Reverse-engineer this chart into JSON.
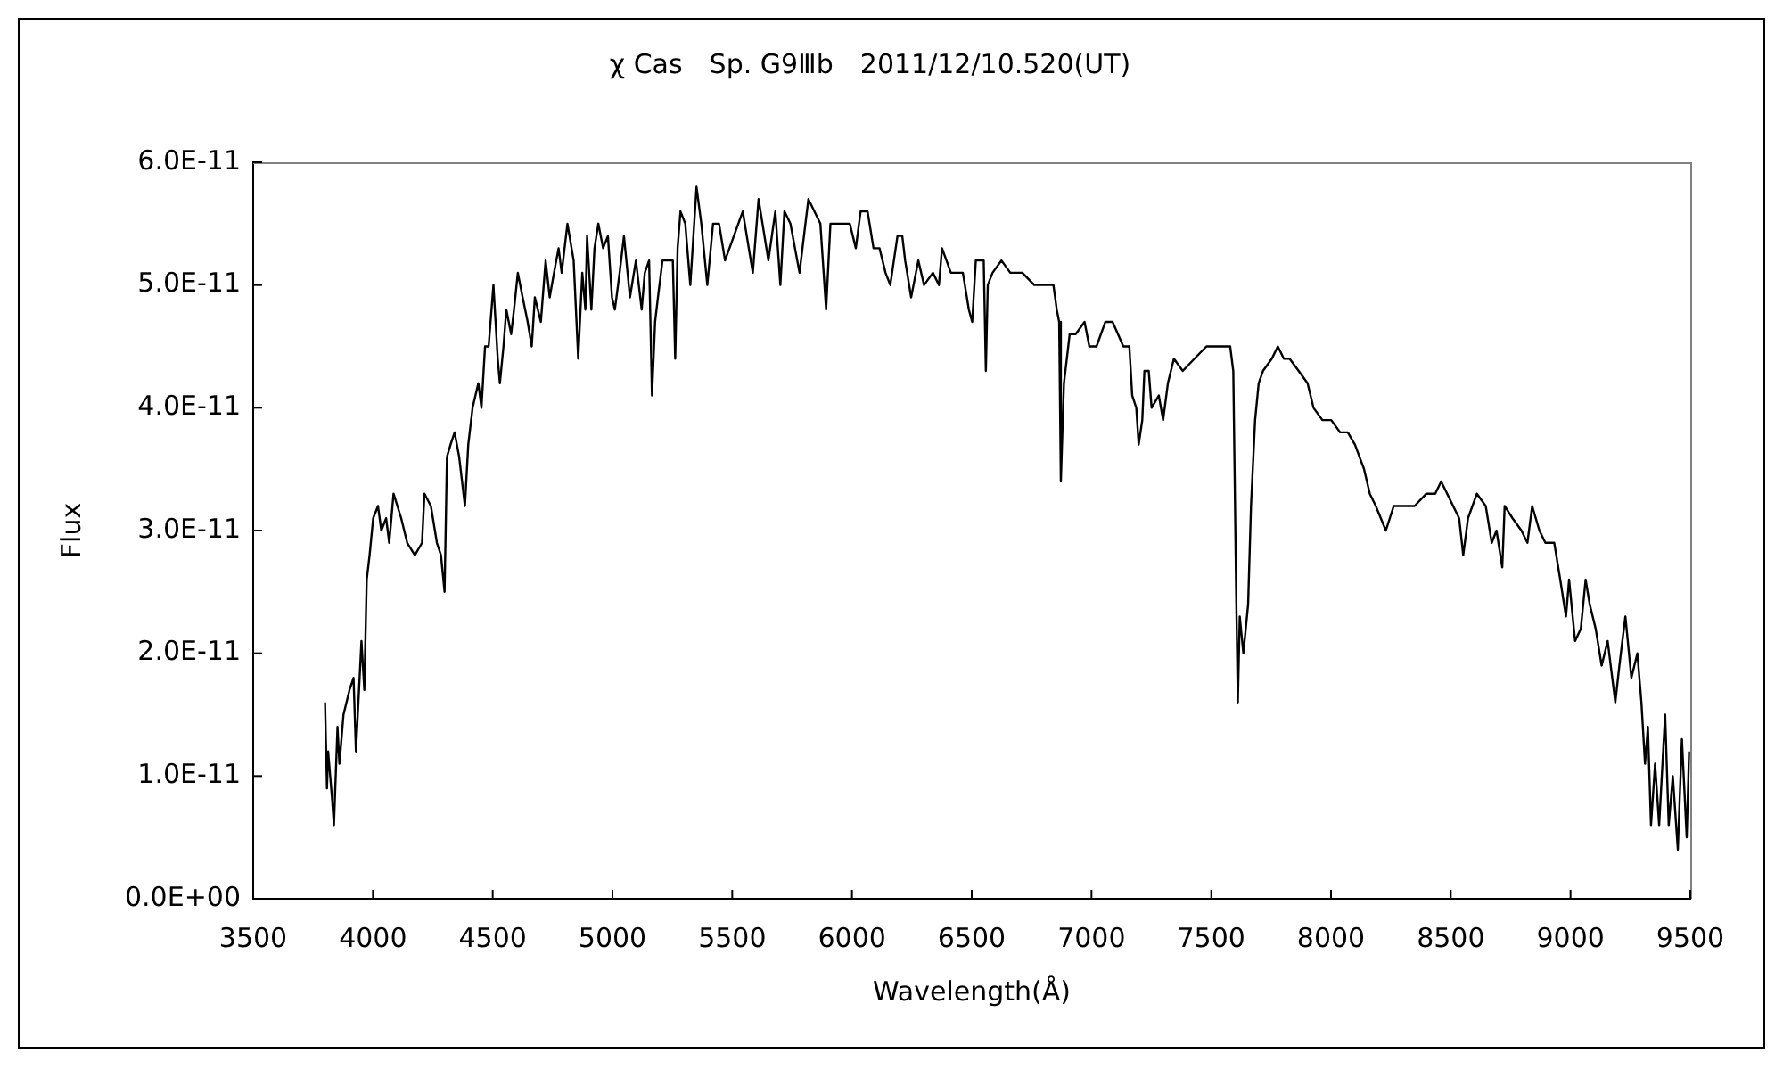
{
  "chart_data": {
    "type": "line",
    "title": "χ Cas　Sp. G9Ⅲb　2011/12/10.520(UT)",
    "xlabel": "Wavelength(Å)",
    "ylabel": "Flux",
    "x": [
      3800,
      3808,
      3813,
      3830,
      3837,
      3852,
      3860,
      3877,
      3902,
      3919,
      3929,
      3952,
      3964,
      3974,
      3986,
      4001,
      4021,
      4035,
      4055,
      4068,
      4086,
      4118,
      4143,
      4175,
      4205,
      4215,
      4242,
      4267,
      4284,
      4299,
      4309,
      4324,
      4341,
      4360,
      4384,
      4398,
      4416,
      4440,
      4453,
      4468,
      4483,
      4503,
      4521,
      4530,
      4545,
      4557,
      4577,
      4589,
      4605,
      4625,
      4646,
      4663,
      4676,
      4701,
      4721,
      4738,
      4756,
      4775,
      4788,
      4812,
      4838,
      4857,
      4874,
      4887,
      4894,
      4912,
      4925,
      4941,
      4961,
      4981,
      4998,
      5010,
      5030,
      5048,
      5073,
      5098,
      5122,
      5135,
      5153,
      5165,
      5178,
      5190,
      5209,
      5234,
      5252,
      5262,
      5272,
      5284,
      5304,
      5325,
      5351,
      5371,
      5396,
      5420,
      5445,
      5470,
      5544,
      5586,
      5610,
      5651,
      5680,
      5701,
      5718,
      5743,
      5781,
      5818,
      5843,
      5868,
      5892,
      5910,
      5954,
      5991,
      6016,
      6036,
      6065,
      6090,
      6115,
      6140,
      6160,
      6190,
      6210,
      6222,
      6247,
      6277,
      6301,
      6338,
      6363,
      6376,
      6413,
      6438,
      6463,
      6488,
      6502,
      6517,
      6550,
      6559,
      6567,
      6587,
      6624,
      6661,
      6711,
      6761,
      6811,
      6841,
      6855,
      6865,
      6872,
      6885,
      6897,
      6909,
      6934,
      6971,
      6991,
      7021,
      7058,
      7088,
      7133,
      7158,
      7170,
      7187,
      7197,
      7212,
      7221,
      7239,
      7251,
      7281,
      7299,
      7319,
      7344,
      7381,
      7430,
      7480,
      7505,
      7554,
      7579,
      7592,
      7604,
      7611,
      7619,
      7634,
      7654,
      7666,
      7683,
      7698,
      7716,
      7753,
      7778,
      7803,
      7827,
      7865,
      7902,
      7927,
      7964,
      8001,
      8038,
      8070,
      8100,
      8138,
      8162,
      8187,
      8229,
      8262,
      8299,
      8349,
      8398,
      8435,
      8460,
      8485,
      8510,
      8535,
      8552,
      8572,
      8609,
      8646,
      8671,
      8691,
      8715,
      8725,
      8758,
      8795,
      8820,
      8840,
      8870,
      8895,
      8932,
      8957,
      8981,
      8994,
      9019,
      9043,
      9063,
      9080,
      9105,
      9130,
      9155,
      9187,
      9204,
      9229,
      9254,
      9279,
      9296,
      9311,
      9323,
      9336,
      9353,
      9370,
      9395,
      9410,
      9427,
      9448,
      9465,
      9485,
      9495
    ],
    "series": [
      {
        "color": "#000000",
        "values": [
          1.6e-11,
          9e-12,
          1.2e-11,
          8e-12,
          6e-12,
          1.4e-11,
          1.1e-11,
          1.5e-11,
          1.7e-11,
          1.8e-11,
          1.2e-11,
          2.1e-11,
          1.7e-11,
          2.6e-11,
          2.8e-11,
          3.1e-11,
          3.2e-11,
          3e-11,
          3.1e-11,
          2.9e-11,
          3.3e-11,
          3.1e-11,
          2.9e-11,
          2.8e-11,
          2.9e-11,
          3.3e-11,
          3.2e-11,
          2.9e-11,
          2.8e-11,
          2.5e-11,
          3.6e-11,
          3.7e-11,
          3.8e-11,
          3.6e-11,
          3.2e-11,
          3.7e-11,
          4e-11,
          4.2e-11,
          4e-11,
          4.5e-11,
          4.5e-11,
          5e-11,
          4.4e-11,
          4.2e-11,
          4.5e-11,
          4.8e-11,
          4.6e-11,
          4.8e-11,
          5.1e-11,
          4.9e-11,
          4.7e-11,
          4.5e-11,
          4.9e-11,
          4.7e-11,
          5.2e-11,
          4.9e-11,
          5.1e-11,
          5.3e-11,
          5.1e-11,
          5.5e-11,
          5.2e-11,
          4.4e-11,
          5.1e-11,
          4.8e-11,
          5.4e-11,
          4.8e-11,
          5.3e-11,
          5.5e-11,
          5.3e-11,
          5.4e-11,
          4.9e-11,
          4.8e-11,
          5.1e-11,
          5.4e-11,
          4.9e-11,
          5.2e-11,
          4.8e-11,
          5.1e-11,
          5.2e-11,
          4.1e-11,
          4.7e-11,
          4.9e-11,
          5.2e-11,
          5.2e-11,
          5.2e-11,
          4.4e-11,
          5.3e-11,
          5.6e-11,
          5.5e-11,
          5e-11,
          5.8e-11,
          5.5e-11,
          5e-11,
          5.5e-11,
          5.5e-11,
          5.2e-11,
          5.6e-11,
          5.1e-11,
          5.7e-11,
          5.2e-11,
          5.6e-11,
          5e-11,
          5.6e-11,
          5.5e-11,
          5.1e-11,
          5.7e-11,
          5.6e-11,
          5.5e-11,
          4.8e-11,
          5.5e-11,
          5.5e-11,
          5.5e-11,
          5.3e-11,
          5.6e-11,
          5.6e-11,
          5.3e-11,
          5.3e-11,
          5.1e-11,
          5e-11,
          5.4e-11,
          5.4e-11,
          5.2e-11,
          4.9e-11,
          5.2e-11,
          5e-11,
          5.1e-11,
          5e-11,
          5.3e-11,
          5.1e-11,
          5.1e-11,
          5.1e-11,
          4.8e-11,
          4.7e-11,
          5.2e-11,
          5.2e-11,
          4.3e-11,
          5e-11,
          5.1e-11,
          5.2e-11,
          5.1e-11,
          5.1e-11,
          5e-11,
          5e-11,
          5e-11,
          4.8e-11,
          4.7e-11,
          3.4e-11,
          4.2e-11,
          4.4e-11,
          4.6e-11,
          4.6e-11,
          4.7e-11,
          4.5e-11,
          4.5e-11,
          4.7e-11,
          4.7e-11,
          4.5e-11,
          4.5e-11,
          4.1e-11,
          4e-11,
          3.7e-11,
          3.9e-11,
          4.3e-11,
          4.3e-11,
          4e-11,
          4.1e-11,
          3.9e-11,
          4.2e-11,
          4.4e-11,
          4.3e-11,
          4.4e-11,
          4.5e-11,
          4.5e-11,
          4.5e-11,
          4.5e-11,
          4.3e-11,
          2.5e-11,
          1.6e-11,
          2.3e-11,
          2e-11,
          2.4e-11,
          3.2e-11,
          3.9e-11,
          4.2e-11,
          4.3e-11,
          4.4e-11,
          4.5e-11,
          4.4e-11,
          4.4e-11,
          4.3e-11,
          4.2e-11,
          4e-11,
          3.9e-11,
          3.9e-11,
          3.8e-11,
          3.8e-11,
          3.7e-11,
          3.5e-11,
          3.3e-11,
          3.2e-11,
          3e-11,
          3.2e-11,
          3.2e-11,
          3.2e-11,
          3.3e-11,
          3.3e-11,
          3.4e-11,
          3.3e-11,
          3.2e-11,
          3.1e-11,
          2.8e-11,
          3.1e-11,
          3.3e-11,
          3.2e-11,
          2.9e-11,
          3e-11,
          2.7e-11,
          3.2e-11,
          3.1e-11,
          3e-11,
          2.9e-11,
          3.2e-11,
          3e-11,
          2.9e-11,
          2.9e-11,
          2.6e-11,
          2.3e-11,
          2.6e-11,
          2.1e-11,
          2.2e-11,
          2.6e-11,
          2.4e-11,
          2.2e-11,
          1.9e-11,
          2.1e-11,
          1.6e-11,
          1.9e-11,
          2.3e-11,
          1.8e-11,
          2e-11,
          1.6e-11,
          1.1e-11,
          1.4e-11,
          6e-12,
          1.1e-11,
          6e-12,
          1.5e-11,
          6e-12,
          1e-11,
          4e-12,
          1.3e-11,
          5e-12,
          1.2e-11
        ]
      }
    ],
    "xlim": [
      3500,
      9500
    ],
    "xticks": [
      3500,
      4000,
      4500,
      5000,
      5500,
      6000,
      6500,
      7000,
      7500,
      8000,
      8500,
      9000,
      9500
    ],
    "ylim": [
      0,
      6e-11
    ],
    "yticks": [
      {
        "value": 0,
        "label": "0.0E+00"
      },
      {
        "value": 1e-11,
        "label": "1.0E-11"
      },
      {
        "value": 2e-11,
        "label": "2.0E-11"
      },
      {
        "value": 3e-11,
        "label": "3.0E-11"
      },
      {
        "value": 4e-11,
        "label": "4.0E-11"
      },
      {
        "value": 5e-11,
        "label": "5.0E-11"
      },
      {
        "value": 6e-11,
        "label": "6.0E-11"
      }
    ],
    "marker": "none",
    "line_style": "solid"
  }
}
